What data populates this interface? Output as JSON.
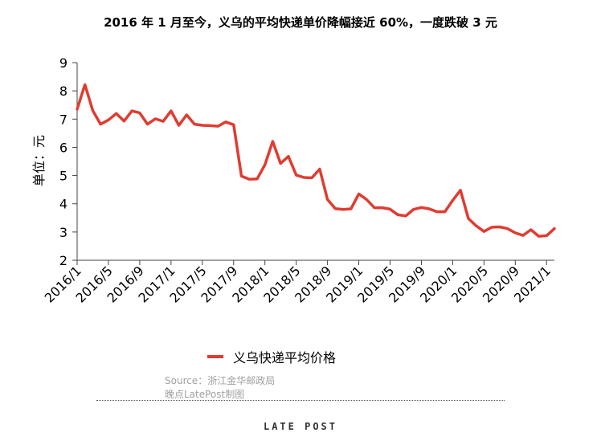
{
  "chart_data": {
    "type": "line",
    "title": "2016 年 1 月至今，义乌的平均快递单价降幅接近 60%，一度跌破 3 元",
    "ylabel": "单位：元",
    "xlabel": "",
    "ylim": [
      2,
      9
    ],
    "yticks": [
      "2",
      "3",
      "4",
      "5",
      "6",
      "7",
      "8",
      "9"
    ],
    "xticks": [
      "2016/1",
      "2016/5",
      "2016/9",
      "2017/1",
      "2017/5",
      "2017/9",
      "2018/1",
      "2018/5",
      "2018/9",
      "2019/1",
      "2019/5",
      "2019/9",
      "2020/1",
      "2020/5",
      "2020/9",
      "2021/1"
    ],
    "series": [
      {
        "name": "义乌快递平均价格",
        "color": "#e03c31",
        "values": [
          7.35,
          8.22,
          7.3,
          6.82,
          6.97,
          7.2,
          6.93,
          7.29,
          7.22,
          6.82,
          7.01,
          6.92,
          7.29,
          6.78,
          7.15,
          6.82,
          6.78,
          6.77,
          6.75,
          6.9,
          6.8,
          4.98,
          4.87,
          4.88,
          5.38,
          6.21,
          5.43,
          5.68,
          5.02,
          4.93,
          4.92,
          5.23,
          4.15,
          3.83,
          3.8,
          3.82,
          4.35,
          4.15,
          3.86,
          3.86,
          3.81,
          3.61,
          3.57,
          3.8,
          3.87,
          3.82,
          3.72,
          3.72,
          4.12,
          4.48,
          3.48,
          3.22,
          3.02,
          3.17,
          3.18,
          3.12,
          2.97,
          2.88,
          3.08,
          2.85,
          2.87,
          3.12
        ]
      }
    ],
    "legend_position": "bottom-center",
    "grid": false
  },
  "source_text": "Source：浙江金华邮政局",
  "credit_text": "晚点LatePost制图",
  "brand_text": "LATE POST"
}
